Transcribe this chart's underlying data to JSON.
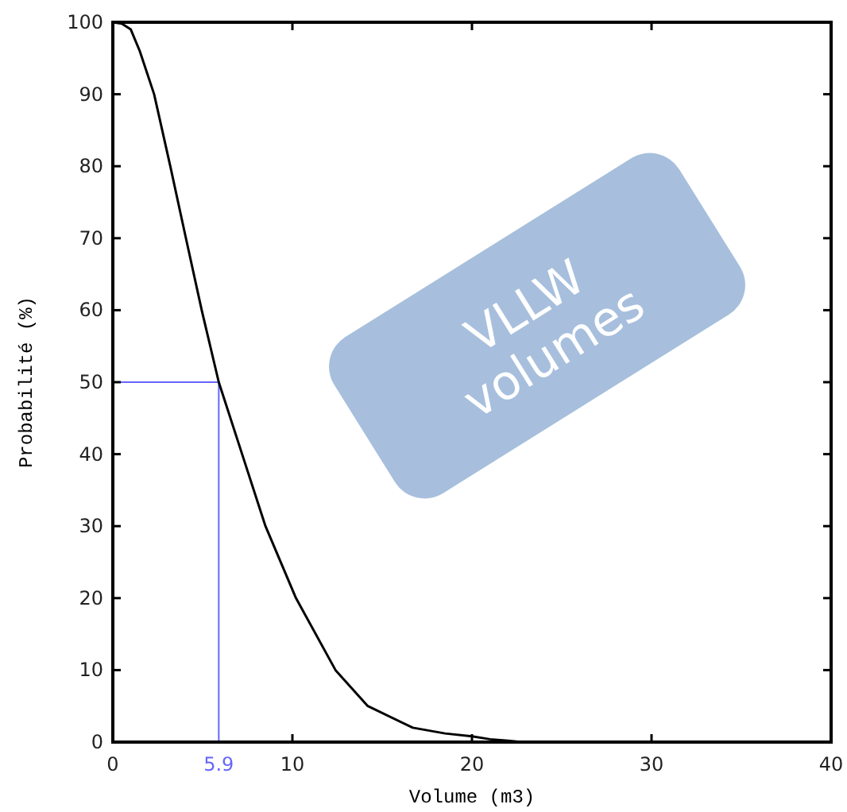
{
  "chart_data": {
    "type": "line",
    "xlabel": "Volume (m3)",
    "ylabel": "Probabilité (%)",
    "x": [
      0,
      0.5,
      1,
      1.5,
      2.3,
      3.2,
      4.07,
      4.95,
      5.9,
      7.2,
      8.5,
      10.2,
      12.4,
      14.2,
      16.7,
      18.5,
      20,
      21,
      22,
      22.8
    ],
    "series": [
      {
        "color": "#000000",
        "values": [
          100,
          99.8,
          99,
          96,
          90,
          80,
          70,
          60,
          50,
          40,
          30,
          20,
          10,
          5,
          2,
          1.2,
          0.8,
          0.4,
          0.2,
          0
        ]
      }
    ],
    "xlim": [
      0,
      40
    ],
    "ylim": [
      0,
      100
    ],
    "xticks": [
      0,
      10,
      20,
      30,
      40
    ],
    "yticks": [
      0,
      10,
      20,
      30,
      40,
      50,
      60,
      70,
      80,
      90,
      100
    ],
    "grid": false,
    "marker": "none",
    "line_style": "solid",
    "ref_lines": [
      {
        "axis": "x",
        "value": 5.9,
        "label": "5.9",
        "color": "#6666ff"
      },
      {
        "axis": "y",
        "value": 50,
        "color": "#6666ff"
      }
    ],
    "annotations": [
      "VLLW volumes"
    ]
  }
}
